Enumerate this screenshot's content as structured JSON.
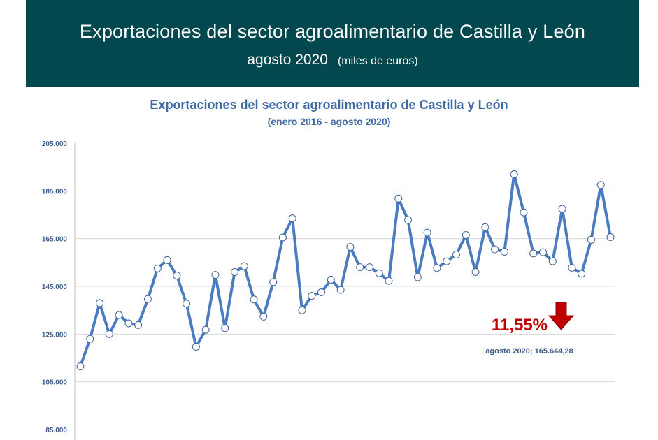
{
  "header": {
    "title": "Exportaciones del sector agroalimentario de Castilla y León",
    "date": "agosto 2020",
    "units": "(miles de euros)"
  },
  "colors": {
    "banner": "#03474f",
    "line": "#4a7cbf",
    "marker_fill": "#ffffff",
    "grid": "#d9d9d9",
    "title": "#3e6aa6",
    "highlight": "#c00000"
  },
  "chart_data": {
    "type": "line",
    "title": "Exportaciones del sector agroalimentario de Castilla y León",
    "subtitle": "(enero 2016 - agosto 2020)",
    "xlabel": "",
    "ylabel": "",
    "ylim": [
      85000,
      205000
    ],
    "yticks": [
      85000,
      105000,
      125000,
      145000,
      165000,
      185000,
      205000
    ],
    "ytick_labels": [
      "85.000",
      "105.000",
      "125.000",
      "145.000",
      "165.000",
      "185.000",
      "205.000"
    ],
    "grid": true,
    "legend": "none",
    "series": [
      {
        "name": "Exportaciones",
        "values": [
          111500,
          123000,
          138000,
          125000,
          133000,
          129500,
          128800,
          139700,
          152500,
          156000,
          149500,
          137800,
          119700,
          126800,
          149800,
          127500,
          151000,
          153500,
          139500,
          132300,
          146800,
          165500,
          173500,
          135000,
          141000,
          142500,
          147800,
          143500,
          161500,
          153000,
          153000,
          150500,
          147300,
          181800,
          172800,
          148800,
          167500,
          152700,
          155500,
          158300,
          166500,
          151000,
          169800,
          160500,
          159500,
          192000,
          176000,
          158800,
          159300,
          155500,
          177500,
          152800,
          150300,
          164500,
          187500,
          165644.28
        ]
      }
    ],
    "annotations": [
      {
        "text": "11,55%",
        "kind": "percent-change",
        "direction": "down"
      },
      {
        "text": "agosto 2020; 165.644,28",
        "kind": "last-point-label"
      }
    ]
  }
}
